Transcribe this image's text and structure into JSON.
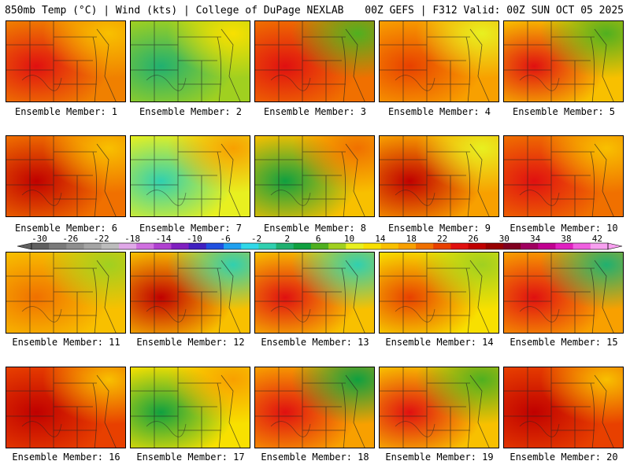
{
  "header": {
    "title_left": "850mb Temp (°C) | Wind (kts) | College of DuPage NEXLAB",
    "title_right": "00Z GEFS | F312 Valid: 00Z SUN OCT 05 2025"
  },
  "colorbar": {
    "labels": [
      "-30",
      "-26",
      "-22",
      "-18",
      "-14",
      "-10",
      "-6",
      "-2",
      "2",
      "6",
      "10",
      "14",
      "18",
      "22",
      "26",
      "30",
      "34",
      "38",
      "42"
    ],
    "colors": [
      "#606060",
      "#7a7a7a",
      "#8f8f8f",
      "#a4a4a4",
      "#bcbcbc",
      "#e0a8e8",
      "#d070e0",
      "#b040d0",
      "#8020c0",
      "#4020c0",
      "#2050e0",
      "#20a0f0",
      "#30d8e8",
      "#30d0b0",
      "#20b070",
      "#10a040",
      "#50b020",
      "#a0d020",
      "#e8f020",
      "#f8e000",
      "#f8c000",
      "#f8a000",
      "#f07000",
      "#e84000",
      "#e01010",
      "#c00000",
      "#980000",
      "#800020",
      "#a00060",
      "#c00090",
      "#e020c0",
      "#f060e0",
      "#f8a0f0"
    ]
  },
  "panels": [
    {
      "caption": "Ensemble Member: 1"
    },
    {
      "caption": "Ensemble Member: 2"
    },
    {
      "caption": "Ensemble Member: 3"
    },
    {
      "caption": "Ensemble Member: 4"
    },
    {
      "caption": "Ensemble Member: 5"
    },
    {
      "caption": "Ensemble Member: 6"
    },
    {
      "caption": "Ensemble Member: 7"
    },
    {
      "caption": "Ensemble Member: 8"
    },
    {
      "caption": "Ensemble Member: 9"
    },
    {
      "caption": "Ensemble Member: 10"
    },
    {
      "caption": "Ensemble Member: 11"
    },
    {
      "caption": "Ensemble Member: 12"
    },
    {
      "caption": "Ensemble Member: 13"
    },
    {
      "caption": "Ensemble Member: 14"
    },
    {
      "caption": "Ensemble Member: 15"
    },
    {
      "caption": "Ensemble Member: 16"
    },
    {
      "caption": "Ensemble Member: 17"
    },
    {
      "caption": "Ensemble Member: 18"
    },
    {
      "caption": "Ensemble Member: 19"
    },
    {
      "caption": "Ensemble Member: 20"
    }
  ]
}
